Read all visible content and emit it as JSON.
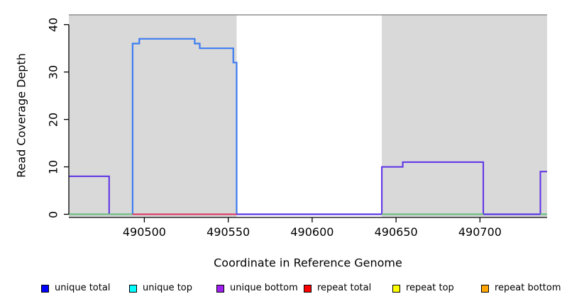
{
  "chart_data": {
    "type": "line",
    "subtype": "step-coverage-plot",
    "title": "",
    "xlabel": "Coordinate in Reference Genome",
    "ylabel": "Read Coverage Depth",
    "xlim": [
      490455,
      490740
    ],
    "ylim": [
      0,
      42.2
    ],
    "x_ticks": [
      490500,
      490550,
      490600,
      490650,
      490700
    ],
    "y_ticks": [
      0,
      10,
      20,
      30,
      40
    ],
    "grid": false,
    "box_top_color": "#8f8f8f",
    "shaded_regions": [
      {
        "x1": 490455,
        "x2": 490555,
        "color": "#d9d9d9"
      },
      {
        "x1": 490641.5,
        "x2": 490740,
        "color": "#d9d9d9"
      }
    ],
    "series": [
      {
        "name": "coverage depth step line (blue)",
        "color": "#3d7cf0",
        "style": "step",
        "width": 2.2,
        "points": [
          [
            490455,
            0
          ],
          [
            490493,
            36
          ],
          [
            490497,
            37
          ],
          [
            490530,
            36
          ],
          [
            490533,
            35
          ],
          [
            490553,
            32
          ],
          [
            490555,
            0
          ],
          [
            490740,
            0
          ]
        ]
      },
      {
        "name": "coverage depth step line (purple / unique bottom)",
        "color": "#5c30e6",
        "style": "step",
        "width": 2,
        "points": [
          [
            490455,
            8
          ],
          [
            490479,
            0
          ],
          [
            490641.5,
            10
          ],
          [
            490654,
            11
          ],
          [
            490702,
            0
          ],
          [
            490736,
            9
          ],
          [
            490740,
            9
          ]
        ]
      },
      {
        "name": "zero baseline segments (green)",
        "color": "#74c476",
        "style": "segments",
        "width": 2,
        "value": 0,
        "segments": [
          [
            490455,
            490493
          ],
          [
            490641.5,
            490702
          ],
          [
            490736,
            490740
          ]
        ]
      },
      {
        "name": "zero baseline segment (red / repeat total)",
        "color": "#da315c",
        "style": "segments",
        "width": 2,
        "value": 0,
        "segments": [
          [
            490493,
            490555
          ]
        ]
      }
    ],
    "legend_position": "bottom"
  },
  "legend": {
    "items": [
      {
        "label": "unique total",
        "color": "#0000ff"
      },
      {
        "label": "unique top",
        "color": "#00ffff"
      },
      {
        "label": "unique bottom",
        "color": "#a020f0"
      },
      {
        "label": "repeat total",
        "color": "#ff0000"
      },
      {
        "label": "repeat top",
        "color": "#ffff00"
      },
      {
        "label": "repeat bottom",
        "color": "#ffa500"
      }
    ]
  }
}
